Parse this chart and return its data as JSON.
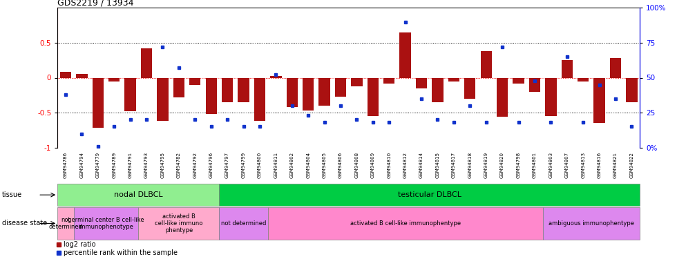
{
  "title": "GDS2219 / 13934",
  "samples": [
    "GSM94786",
    "GSM94794",
    "GSM94779",
    "GSM94789",
    "GSM94791",
    "GSM94793",
    "GSM94795",
    "GSM94782",
    "GSM94792",
    "GSM94796",
    "GSM94797",
    "GSM94799",
    "GSM94800",
    "GSM94811",
    "GSM94802",
    "GSM94804",
    "GSM94805",
    "GSM94806",
    "GSM94808",
    "GSM94809",
    "GSM94810",
    "GSM94812",
    "GSM94814",
    "GSM94815",
    "GSM94817",
    "GSM94818",
    "GSM94819",
    "GSM94820",
    "GSM94798",
    "GSM94801",
    "GSM94803",
    "GSM94807",
    "GSM94813",
    "GSM94816",
    "GSM94821",
    "GSM94822"
  ],
  "log2_ratio": [
    0.08,
    0.05,
    -0.72,
    -0.05,
    -0.48,
    0.42,
    -0.62,
    -0.28,
    -0.1,
    -0.52,
    -0.35,
    -0.35,
    -0.62,
    0.02,
    -0.42,
    -0.47,
    -0.4,
    -0.27,
    -0.12,
    -0.55,
    -0.08,
    0.65,
    -0.15,
    -0.35,
    -0.05,
    -0.3,
    0.38,
    -0.56,
    -0.08,
    -0.2,
    -0.55,
    0.25,
    -0.05,
    -0.65,
    0.28,
    -0.35
  ],
  "percentile_raw": [
    38,
    10,
    1,
    15,
    20,
    20,
    72,
    57,
    20,
    15,
    20,
    15,
    15,
    52,
    30,
    23,
    18,
    30,
    20,
    18,
    18,
    90,
    35,
    20,
    18,
    30,
    18,
    72,
    18,
    48,
    18,
    65,
    18,
    45,
    35,
    15
  ],
  "tissue_groups": [
    {
      "label": "nodal DLBCL",
      "start": 0,
      "end": 10,
      "color": "#90EE90"
    },
    {
      "label": "testicular DLBCL",
      "start": 10,
      "end": 36,
      "color": "#00CC44"
    }
  ],
  "disease_groups": [
    {
      "label": "not\ndetermined",
      "start": 0,
      "end": 1,
      "color": "#FFAACC"
    },
    {
      "label": "germinal center B cell-like\nimmunophenotype",
      "start": 1,
      "end": 5,
      "color": "#DD88EE"
    },
    {
      "label": "activated B\ncell-like immuno\nphentype",
      "start": 5,
      "end": 10,
      "color": "#FFAACC"
    },
    {
      "label": "not determined",
      "start": 10,
      "end": 13,
      "color": "#DD88EE"
    },
    {
      "label": "activated B cell-like immunophentype",
      "start": 13,
      "end": 30,
      "color": "#FF88CC"
    },
    {
      "label": "ambiguous immunophentype",
      "start": 30,
      "end": 36,
      "color": "#DD88EE"
    }
  ],
  "bar_color": "#AA1111",
  "dot_color": "#1133CC",
  "ylim": [
    -1,
    1
  ],
  "yticks_left": [
    -1,
    -0.5,
    0,
    0.5
  ],
  "ytick_labels_left": [
    "-1",
    "-0.5",
    "0",
    "0.5"
  ],
  "right_pct_ticks": [
    0,
    25,
    50,
    75,
    100
  ],
  "right_pct_labels": [
    "0%",
    "25",
    "50",
    "75",
    "100%"
  ]
}
